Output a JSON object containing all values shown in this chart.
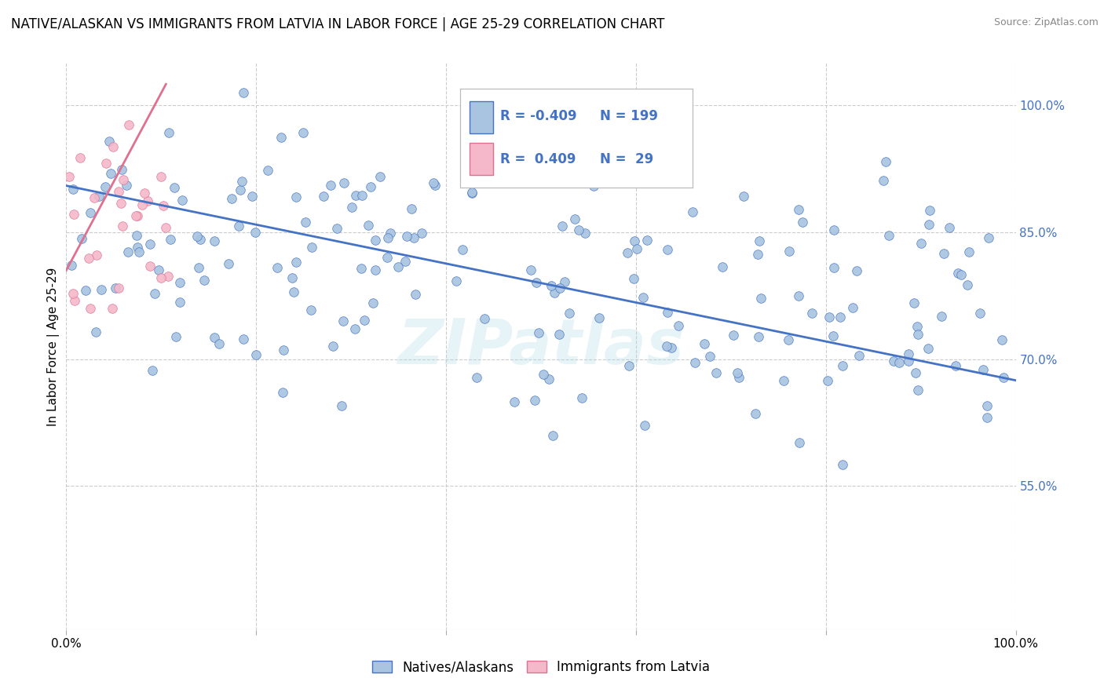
{
  "title": "NATIVE/ALASKAN VS IMMIGRANTS FROM LATVIA IN LABOR FORCE | AGE 25-29 CORRELATION CHART",
  "source_text": "Source: ZipAtlas.com",
  "ylabel": "In Labor Force | Age 25-29",
  "watermark": "ZIPatlas",
  "xlim": [
    0.0,
    1.0
  ],
  "ylim": [
    0.38,
    1.05
  ],
  "x_ticks": [
    0.0,
    0.2,
    0.4,
    0.6,
    0.8,
    1.0
  ],
  "y_ticks": [
    0.55,
    0.7,
    0.85,
    1.0
  ],
  "y_tick_labels": [
    "55.0%",
    "70.0%",
    "85.0%",
    "100.0%"
  ],
  "blue_color": "#a8c4e0",
  "blue_line_color": "#4472c4",
  "pink_color": "#f4b8ca",
  "pink_line_color": "#e07090",
  "R_blue": -0.409,
  "N_blue": 199,
  "R_pink": 0.409,
  "N_pink": 29,
  "blue_scatter_seed": 42,
  "pink_scatter_seed": 7,
  "blue_trend_x": [
    0.0,
    1.0
  ],
  "blue_trend_y": [
    0.905,
    0.675
  ],
  "pink_trend_x": [
    0.0,
    0.105
  ],
  "pink_trend_y": [
    0.805,
    1.025
  ],
  "background_color": "#ffffff",
  "grid_color": "#cccccc",
  "title_fontsize": 12,
  "axis_label_fontsize": 11,
  "tick_fontsize": 11,
  "dot_size_blue": 70,
  "dot_size_pink": 70,
  "legend_R_blue_text": "R = -0.409",
  "legend_N_blue_text": "N = 199",
  "legend_R_pink_text": "R =  0.409",
  "legend_N_pink_text": "N =  29"
}
